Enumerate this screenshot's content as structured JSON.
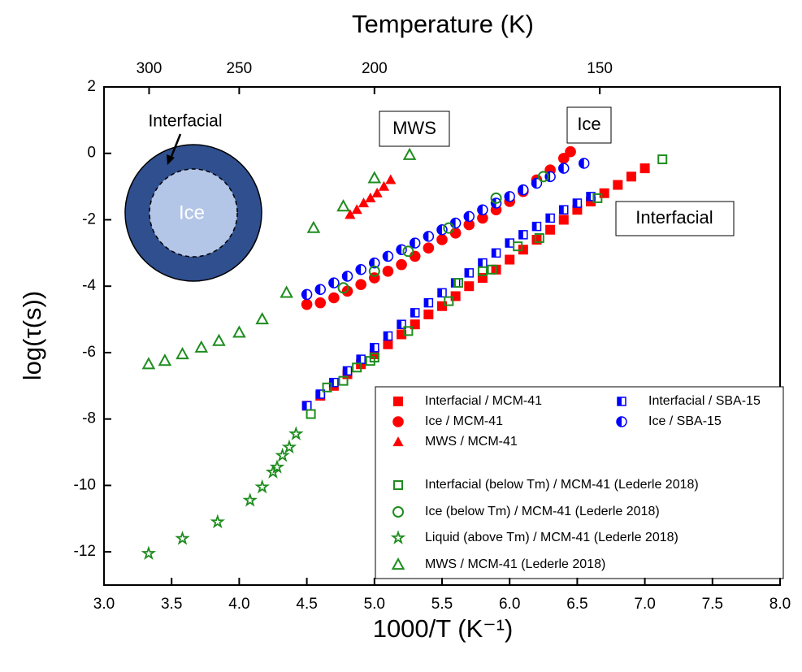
{
  "chart_data": {
    "type": "scatter",
    "x_label": "1000/T (K⁻¹)",
    "y_label": "log(τ(s))",
    "x2_label": "Temperature (K)",
    "xlim": [
      3.0,
      8.0
    ],
    "xticks": [
      {
        "value": 3,
        "label": "3.0"
      },
      3.5,
      {
        "value": 4,
        "label": "4.0"
      },
      4.5,
      {
        "value": 5,
        "label": "5.0"
      },
      5.5,
      {
        "value": 6,
        "label": "6.0"
      },
      6.5,
      {
        "value": 7,
        "label": "7.0"
      },
      7.5,
      {
        "value": 8,
        "label": "8.0"
      }
    ],
    "ylim": [
      -13,
      2
    ],
    "yticks": [
      -12,
      -10,
      -8,
      -6,
      -4,
      -2,
      0,
      2
    ],
    "x2ticks": [
      300,
      250,
      200,
      150
    ],
    "annotations": [
      "Interfacial",
      "Ice",
      "MWS",
      "Ice",
      "Interfacial"
    ],
    "series": [
      {
        "name": "Interfacial / MCM-41",
        "color": "#ff0000",
        "marker": "square",
        "x": [
          4.5,
          4.6,
          4.7,
          4.8,
          4.9,
          5.0,
          5.1,
          5.2,
          5.3,
          5.4,
          5.5,
          5.6,
          5.7,
          5.8,
          5.9,
          6.0,
          6.1,
          6.2,
          6.3,
          6.4,
          6.5,
          6.6,
          6.7,
          6.8,
          6.9,
          7.0
        ],
        "values": [
          -7.6,
          -7.3,
          -7.0,
          -6.65,
          -6.35,
          -6.05,
          -5.75,
          -5.45,
          -5.15,
          -4.85,
          -4.6,
          -4.3,
          -4.0,
          -3.75,
          -3.5,
          -3.2,
          -2.9,
          -2.6,
          -2.3,
          -2.0,
          -1.7,
          -1.45,
          -1.2,
          -0.95,
          -0.7,
          -0.45
        ]
      },
      {
        "name": "Ice / MCM-41",
        "color": "#ff0000",
        "marker": "circle",
        "x": [
          4.5,
          4.6,
          4.7,
          4.8,
          4.9,
          5.0,
          5.1,
          5.2,
          5.3,
          5.4,
          5.5,
          5.6,
          5.7,
          5.8,
          5.9,
          6.0,
          6.1,
          6.2,
          6.3,
          6.4,
          6.45
        ],
        "values": [
          -4.55,
          -4.5,
          -4.35,
          -4.15,
          -3.95,
          -3.75,
          -3.55,
          -3.35,
          -3.1,
          -2.85,
          -2.6,
          -2.4,
          -2.15,
          -1.95,
          -1.7,
          -1.45,
          -1.15,
          -0.8,
          -0.5,
          -0.15,
          0.05
        ]
      },
      {
        "name": "MWS / MCM-41",
        "color": "#ff0000",
        "marker": "triangle",
        "x": [
          4.82,
          4.87,
          4.92,
          4.97,
          5.02,
          5.07,
          5.12
        ],
        "values": [
          -1.85,
          -1.7,
          -1.5,
          -1.35,
          -1.2,
          -1.0,
          -0.8
        ]
      },
      {
        "name": "Interfacial / SBA-15",
        "color": "#0000ff",
        "marker": "half-square",
        "x": [
          4.5,
          4.6,
          4.7,
          4.8,
          4.9,
          5.0,
          5.1,
          5.2,
          5.3,
          5.4,
          5.5,
          5.6,
          5.7,
          5.8,
          5.9,
          6.0,
          6.1,
          6.2,
          6.3,
          6.4,
          6.5,
          6.6
        ],
        "values": [
          -7.6,
          -7.25,
          -6.9,
          -6.55,
          -6.2,
          -5.85,
          -5.5,
          -5.15,
          -4.8,
          -4.5,
          -4.2,
          -3.9,
          -3.6,
          -3.3,
          -3.0,
          -2.7,
          -2.45,
          -2.2,
          -1.95,
          -1.7,
          -1.5,
          -1.3
        ]
      },
      {
        "name": "Ice / SBA-15",
        "color": "#0000ff",
        "marker": "half-circle",
        "x": [
          4.5,
          4.6,
          4.7,
          4.8,
          4.9,
          5.0,
          5.1,
          5.2,
          5.3,
          5.4,
          5.5,
          5.6,
          5.7,
          5.8,
          5.9,
          6.0,
          6.1,
          6.2,
          6.3,
          6.4,
          6.55
        ],
        "values": [
          -4.25,
          -4.1,
          -3.9,
          -3.7,
          -3.5,
          -3.3,
          -3.1,
          -2.9,
          -2.7,
          -2.5,
          -2.3,
          -2.1,
          -1.9,
          -1.7,
          -1.5,
          -1.3,
          -1.1,
          -0.9,
          -0.7,
          -0.45,
          -0.3
        ]
      },
      {
        "name": "Interfacial (below Tm) / MCM-41 (Lederle 2018)",
        "color": "#1e8c1e",
        "marker": "open-square",
        "x": [
          4.53,
          4.65,
          4.77,
          4.87,
          4.97,
          5.0,
          5.25,
          5.55,
          5.62,
          5.8,
          5.87,
          6.06,
          6.22,
          6.65,
          7.13
        ],
        "values": [
          -7.85,
          -7.05,
          -6.85,
          -6.45,
          -6.25,
          -6.15,
          -5.35,
          -4.45,
          -3.9,
          -3.55,
          -3.5,
          -2.8,
          -2.55,
          -1.35,
          -0.18
        ]
      },
      {
        "name": "Ice (below Tm) / MCM-41 (Lederle 2018)",
        "color": "#1e8c1e",
        "marker": "open-circle",
        "x": [
          4.77,
          5.0,
          5.25,
          5.55,
          5.9,
          6.25
        ],
        "values": [
          -4.05,
          -3.55,
          -2.95,
          -2.25,
          -1.35,
          -0.7
        ]
      },
      {
        "name": "Liquid (above Tm) / MCM-41 (Lederle 2018)",
        "color": "#1e8c1e",
        "marker": "star",
        "x": [
          3.33,
          3.58,
          3.84,
          4.08,
          4.17,
          4.25,
          4.28,
          4.32,
          4.37,
          4.42
        ],
        "values": [
          -12.05,
          -11.6,
          -11.1,
          -10.45,
          -10.05,
          -9.6,
          -9.45,
          -9.1,
          -8.85,
          -8.45
        ]
      },
      {
        "name": "MWS / MCM-41 (Lederle 2018)",
        "color": "#1e8c1e",
        "marker": "open-triangle",
        "x": [
          3.33,
          3.45,
          3.58,
          3.72,
          3.85,
          4.0,
          4.17,
          4.35,
          4.55,
          4.77,
          5.0,
          5.26
        ],
        "values": [
          -6.35,
          -6.25,
          -6.05,
          -5.85,
          -5.65,
          -5.4,
          -5.0,
          -4.2,
          -2.25,
          -1.6,
          -0.75,
          -0.05
        ]
      }
    ]
  }
}
